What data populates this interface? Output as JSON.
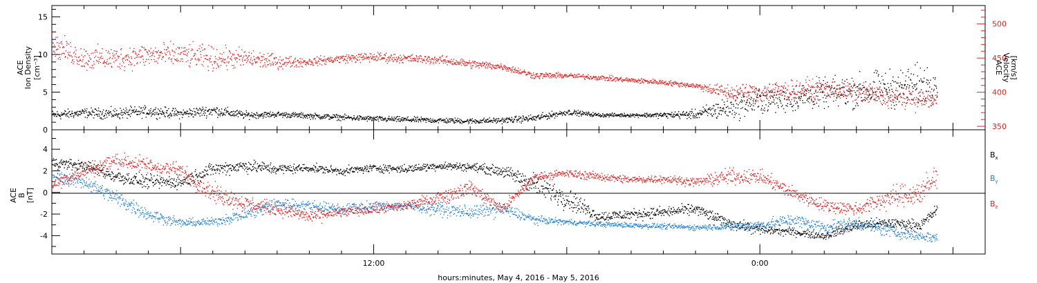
{
  "figure": {
    "xaxis_title": "hours:minutes, May  4, 2016 - May  5, 2016",
    "x_tick_labels": [
      {
        "hour": 12,
        "label": "12:00"
      },
      {
        "hour": 24,
        "label": "0:00"
      }
    ]
  },
  "chart_data": [
    {
      "type": "scatter",
      "panel": "top",
      "x_unit": "hours since 2016-05-04 00:00 UT",
      "xlim": [
        2,
        31
      ],
      "left_axis": {
        "label_lines": [
          "ACE",
          "Ion Density",
          "[cm⁻³]"
        ],
        "ylim": [
          0,
          16.5
        ],
        "ticks": [
          0,
          5,
          10,
          15
        ],
        "color": "#000000"
      },
      "right_axis": {
        "label_lines": [
          "ACE",
          "Velocity",
          "[km/s]"
        ],
        "ylim": [
          345,
          527
        ],
        "ticks": [
          350,
          400,
          450,
          500
        ],
        "color": "#e02020"
      },
      "series": [
        {
          "role": "density",
          "axis": "left",
          "color": "#000000",
          "x": [
            2.0,
            3.0,
            4.0,
            5.0,
            6.0,
            7.0,
            8.0,
            9.0,
            10.0,
            11.0,
            12.0,
            13.0,
            14.0,
            15.0,
            16.0,
            17.0,
            18.0,
            19.0,
            20.0,
            21.0,
            22.0,
            23.0,
            24.0,
            25.0,
            26.0,
            27.0,
            28.0,
            29.0,
            29.5
          ],
          "y": [
            2.0,
            2.3,
            2.2,
            2.5,
            2.2,
            2.6,
            2.0,
            2.1,
            1.9,
            1.7,
            1.5,
            1.4,
            1.3,
            1.2,
            1.3,
            1.6,
            2.4,
            2.0,
            2.0,
            2.0,
            2.1,
            3.0,
            4.0,
            4.3,
            4.9,
            5.2,
            5.5,
            6.0,
            6.5
          ],
          "noise": [
            0.5,
            0.5,
            0.6,
            0.6,
            0.5,
            0.6,
            0.4,
            0.3,
            0.3,
            0.3,
            0.3,
            0.3,
            0.3,
            0.3,
            0.3,
            0.4,
            0.3,
            0.2,
            0.2,
            0.3,
            0.5,
            1.3,
            1.5,
            1.5,
            1.5,
            1.8,
            2.0,
            2.2,
            2.0
          ]
        },
        {
          "role": "velocity",
          "axis": "right",
          "color": "#e02020",
          "x": [
            2.0,
            3.0,
            4.0,
            5.0,
            6.0,
            7.0,
            8.0,
            9.0,
            10.0,
            11.0,
            12.0,
            13.0,
            14.0,
            15.0,
            16.0,
            17.0,
            18.0,
            19.0,
            20.0,
            21.0,
            22.0,
            23.0,
            24.0,
            25.0,
            26.0,
            27.0,
            28.0,
            29.0,
            29.5
          ],
          "y": [
            470,
            450,
            450,
            455,
            455,
            450,
            450,
            445,
            445,
            450,
            452,
            450,
            448,
            442,
            438,
            425,
            425,
            422,
            418,
            415,
            410,
            400,
            400,
            403,
            405,
            400,
            393,
            390,
            388
          ],
          "noise": [
            14,
            14,
            14,
            14,
            14,
            14,
            12,
            8,
            5,
            5,
            6,
            5,
            5,
            5,
            4,
            4,
            3,
            3,
            3,
            3,
            3,
            10,
            12,
            12,
            12,
            12,
            12,
            12,
            12
          ]
        }
      ]
    },
    {
      "type": "scatter",
      "panel": "bottom",
      "x_unit": "hours since 2016-05-04 00:00 UT",
      "xlim": [
        2,
        31
      ],
      "left_axis": {
        "label_lines": [
          "ACE",
          "B",
          "[nT]"
        ],
        "ylim": [
          -5.7,
          5.8
        ],
        "ticks": [
          -4,
          -2,
          0,
          2,
          4
        ],
        "color": "#000000"
      },
      "zero_line": 0,
      "series": [
        {
          "name": "B",
          "subscript": "x",
          "color": "#000000",
          "x": [
            2.0,
            3.0,
            4.0,
            5.0,
            6.0,
            7.0,
            8.0,
            9.0,
            10.0,
            11.0,
            12.0,
            13.0,
            14.0,
            15.0,
            16.0,
            17.0,
            18.0,
            19.0,
            20.0,
            21.0,
            22.0,
            23.0,
            24.0,
            25.0,
            26.0,
            27.0,
            28.0,
            29.0,
            29.5
          ],
          "y": [
            2.8,
            2.5,
            1.5,
            1.0,
            1.0,
            2.2,
            2.5,
            2.2,
            2.3,
            2.0,
            2.3,
            2.2,
            2.5,
            2.4,
            2.0,
            0.8,
            -0.5,
            -2.2,
            -2.0,
            -1.8,
            -1.5,
            -2.8,
            -3.4,
            -3.6,
            -4.0,
            -3.0,
            -2.8,
            -3.0,
            -1.5
          ],
          "noise": [
            0.4,
            0.4,
            0.5,
            0.5,
            0.5,
            0.5,
            0.5,
            0.4,
            0.3,
            0.3,
            0.3,
            0.3,
            0.3,
            0.3,
            0.4,
            0.8,
            0.8,
            0.4,
            0.4,
            0.4,
            0.4,
            0.4,
            0.4,
            0.3,
            0.3,
            0.4,
            0.4,
            0.4,
            0.4
          ]
        },
        {
          "name": "B",
          "subscript": "y",
          "color": "#1e7fd6",
          "x": [
            2.0,
            3.0,
            4.0,
            5.0,
            6.0,
            7.0,
            8.0,
            9.0,
            10.0,
            11.0,
            12.0,
            13.0,
            14.0,
            15.0,
            16.0,
            17.0,
            18.0,
            19.0,
            20.0,
            21.0,
            22.0,
            23.0,
            24.0,
            25.0,
            26.0,
            27.0,
            28.0,
            29.0,
            29.5
          ],
          "y": [
            1.5,
            1.0,
            -0.5,
            -2.0,
            -2.8,
            -2.7,
            -2.0,
            -1.0,
            -1.2,
            -1.5,
            -1.3,
            -1.2,
            -1.5,
            -1.8,
            -1.5,
            -2.5,
            -2.7,
            -2.9,
            -3.0,
            -3.1,
            -3.2,
            -3.1,
            -3.0,
            -2.5,
            -3.2,
            -2.8,
            -3.5,
            -4.0,
            -4.2
          ],
          "noise": [
            0.5,
            0.5,
            0.6,
            0.5,
            0.3,
            0.3,
            0.5,
            0.5,
            0.4,
            0.4,
            0.4,
            0.3,
            0.5,
            0.5,
            0.5,
            0.3,
            0.2,
            0.2,
            0.2,
            0.2,
            0.2,
            0.3,
            0.4,
            0.5,
            0.5,
            0.5,
            0.5,
            0.4,
            0.4
          ]
        },
        {
          "name": "B",
          "subscript": "z",
          "color": "#e02020",
          "x": [
            2.0,
            3.0,
            4.0,
            5.0,
            6.0,
            7.0,
            8.0,
            9.0,
            10.0,
            11.0,
            12.0,
            13.0,
            14.0,
            15.0,
            16.0,
            17.0,
            18.0,
            19.0,
            20.0,
            21.0,
            22.0,
            23.0,
            24.0,
            25.0,
            26.0,
            27.0,
            28.0,
            29.0,
            29.5
          ],
          "y": [
            0.8,
            2.0,
            3.0,
            2.5,
            2.0,
            0.0,
            -1.0,
            -1.5,
            -2.2,
            -1.8,
            -1.5,
            -1.2,
            -0.5,
            0.5,
            -1.5,
            1.5,
            1.8,
            1.5,
            1.2,
            1.3,
            1.0,
            1.5,
            1.5,
            0.0,
            -1.2,
            -1.5,
            -0.5,
            0.0,
            1.5
          ],
          "noise": [
            0.5,
            0.6,
            0.6,
            0.6,
            0.6,
            0.7,
            0.6,
            0.5,
            0.5,
            0.4,
            0.4,
            0.4,
            0.5,
            0.5,
            0.5,
            0.3,
            0.3,
            0.3,
            0.3,
            0.3,
            0.3,
            0.6,
            0.5,
            0.5,
            0.5,
            0.5,
            0.8,
            1.0,
            1.2
          ]
        }
      ]
    }
  ]
}
